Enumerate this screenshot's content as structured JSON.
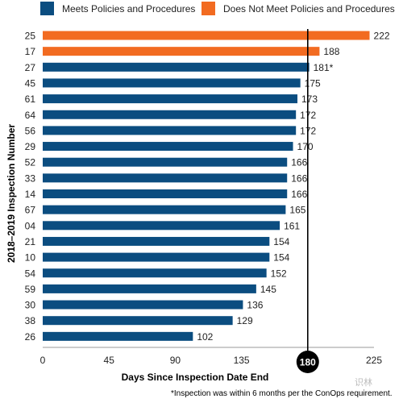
{
  "chart_data": {
    "type": "bar",
    "orientation": "horizontal",
    "ylabel": "2018–2019 Inspection Number",
    "xlabel": "Days Since Inspection Date End",
    "xlim": [
      0,
      225
    ],
    "xticks": [
      "0",
      "45",
      "90",
      "135",
      "180",
      "225"
    ],
    "legend_position": "top",
    "legend": [
      {
        "name": "Meets Policies and Procedures",
        "color": "#0b4d80"
      },
      {
        "name": "Does Not Meet Policies and Procedures",
        "color": "#f26b21"
      }
    ],
    "reference_line": {
      "x": 180,
      "label": "180",
      "color": "#000000"
    },
    "categories": [
      "25",
      "17",
      "27",
      "45",
      "61",
      "64",
      "56",
      "29",
      "52",
      "33",
      "14",
      "67",
      "04",
      "21",
      "10",
      "54",
      "59",
      "30",
      "38",
      "26"
    ],
    "values": [
      222,
      188,
      181,
      175,
      173,
      172,
      172,
      170,
      166,
      166,
      166,
      165,
      161,
      154,
      154,
      152,
      145,
      136,
      129,
      102
    ],
    "value_labels": [
      "222",
      "188",
      "181*",
      "175",
      "173",
      "172",
      "172",
      "170",
      "166",
      "166",
      "166",
      "165",
      "161",
      "154",
      "154",
      "152",
      "145",
      "136",
      "129",
      "102"
    ],
    "status": [
      "not_meets",
      "not_meets",
      "meets",
      "meets",
      "meets",
      "meets",
      "meets",
      "meets",
      "meets",
      "meets",
      "meets",
      "meets",
      "meets",
      "meets",
      "meets",
      "meets",
      "meets",
      "meets",
      "meets",
      "meets"
    ],
    "grid": false
  },
  "footnote": "*Inspection was within 6 months per the ConOps requirement.",
  "watermark": "识林"
}
